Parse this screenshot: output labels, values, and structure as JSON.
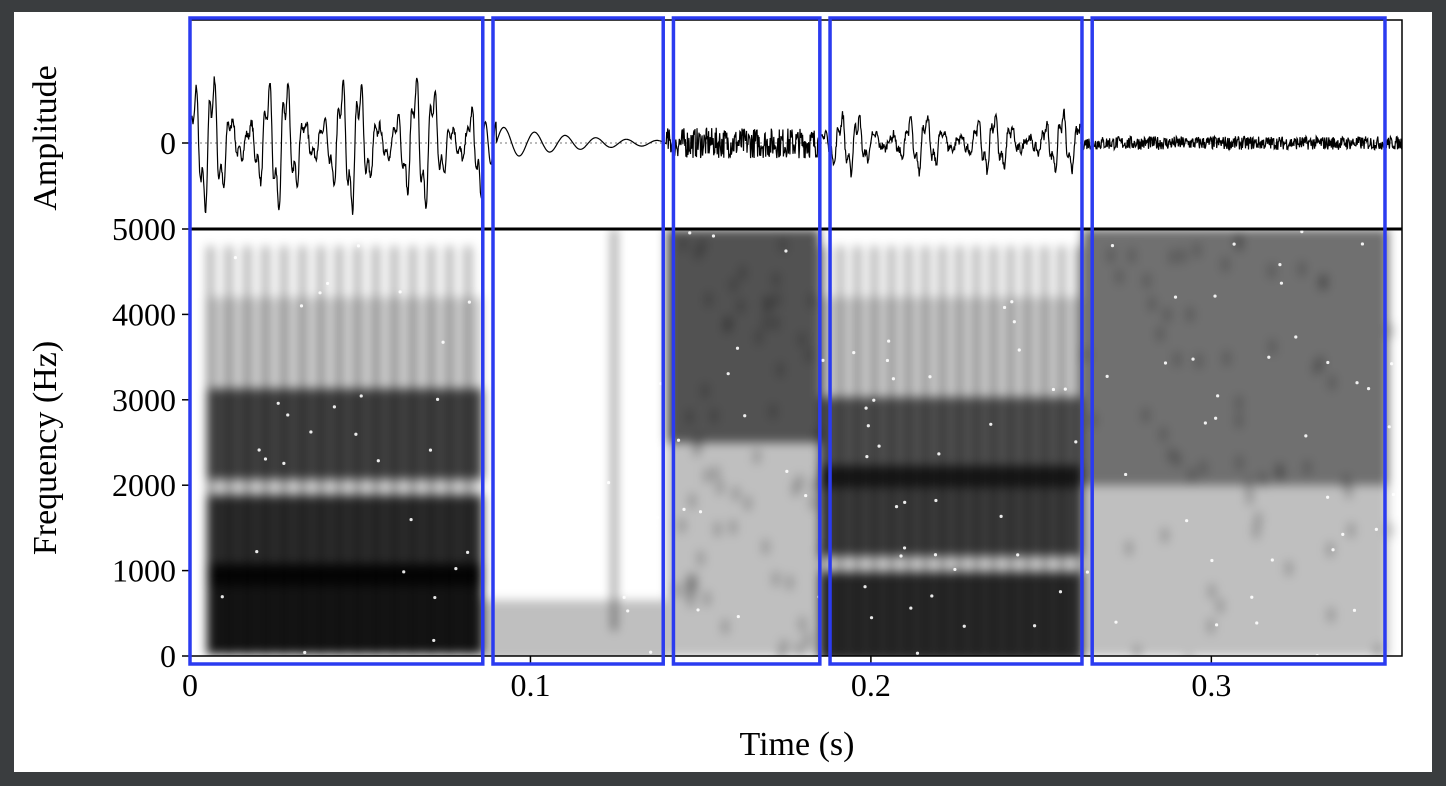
{
  "chart_data": [
    {
      "type": "line",
      "panel": "waveform",
      "ylabel": "Amplitude",
      "yticks": [
        {
          "value": 0,
          "label": "0"
        }
      ],
      "xlim": [
        0,
        0.356
      ],
      "ylim": [
        -1,
        1
      ],
      "segments": [
        {
          "t0": 0.0,
          "t1": 0.086,
          "amp": 0.95,
          "kind": "voiced",
          "period": 0.0054
        },
        {
          "t0": 0.086,
          "t1": 0.09,
          "amp": 0.25,
          "kind": "burst"
        },
        {
          "t0": 0.09,
          "t1": 0.14,
          "amp": 0.2,
          "kind": "decay",
          "period": 0.009
        },
        {
          "t0": 0.14,
          "t1": 0.185,
          "amp": 0.18,
          "kind": "noise"
        },
        {
          "t0": 0.185,
          "t1": 0.262,
          "amp": 0.42,
          "kind": "voiced",
          "period": 0.005
        },
        {
          "t0": 0.262,
          "t1": 0.356,
          "amp": 0.08,
          "kind": "noise"
        }
      ]
    },
    {
      "type": "heatmap",
      "panel": "spectrogram",
      "xlabel": "Time (s)",
      "ylabel": "Frequency (Hz)",
      "xlim": [
        0,
        0.356
      ],
      "ylim": [
        0,
        5000
      ],
      "xticks": [
        {
          "value": 0,
          "label": "0"
        },
        {
          "value": 0.1,
          "label": "0.1"
        },
        {
          "value": 0.2,
          "label": "0.2"
        },
        {
          "value": 0.3,
          "label": "0.3"
        }
      ],
      "yticks": [
        {
          "value": 0,
          "label": "0"
        },
        {
          "value": 1000,
          "label": "1000"
        },
        {
          "value": 2000,
          "label": "2000"
        },
        {
          "value": 3000,
          "label": "3000"
        },
        {
          "value": 4000,
          "label": "4000"
        },
        {
          "value": 5000,
          "label": "5000"
        }
      ],
      "colormap": "grayscale, darker = more energy",
      "regions": [
        {
          "t0": 0.005,
          "t1": 0.086,
          "kind": "voiced",
          "formants_hz": [
            550,
            1350,
            2600
          ],
          "energy": 0.9
        },
        {
          "t0": 0.086,
          "t1": 0.14,
          "kind": "closure",
          "formants_hz": [
            300
          ],
          "energy": 0.25
        },
        {
          "t0": 0.14,
          "t1": 0.185,
          "kind": "fricative",
          "band_hz": [
            2500,
            5000
          ],
          "energy": 0.85
        },
        {
          "t0": 0.185,
          "t1": 0.262,
          "kind": "voiced",
          "formants_hz": [
            450,
            1700,
            2500
          ],
          "energy": 0.8
        },
        {
          "t0": 0.262,
          "t1": 0.352,
          "kind": "fricative",
          "band_hz": [
            2000,
            5000
          ],
          "energy": 0.7
        }
      ]
    }
  ],
  "annotations": {
    "highlight_color": "#2b3bf0",
    "segment_boxes": [
      {
        "t0": 0.0,
        "t1": 0.086
      },
      {
        "t0": 0.089,
        "t1": 0.139
      },
      {
        "t0": 0.142,
        "t1": 0.185
      },
      {
        "t0": 0.188,
        "t1": 0.262
      },
      {
        "t0": 0.265,
        "t1": 0.351
      }
    ]
  }
}
